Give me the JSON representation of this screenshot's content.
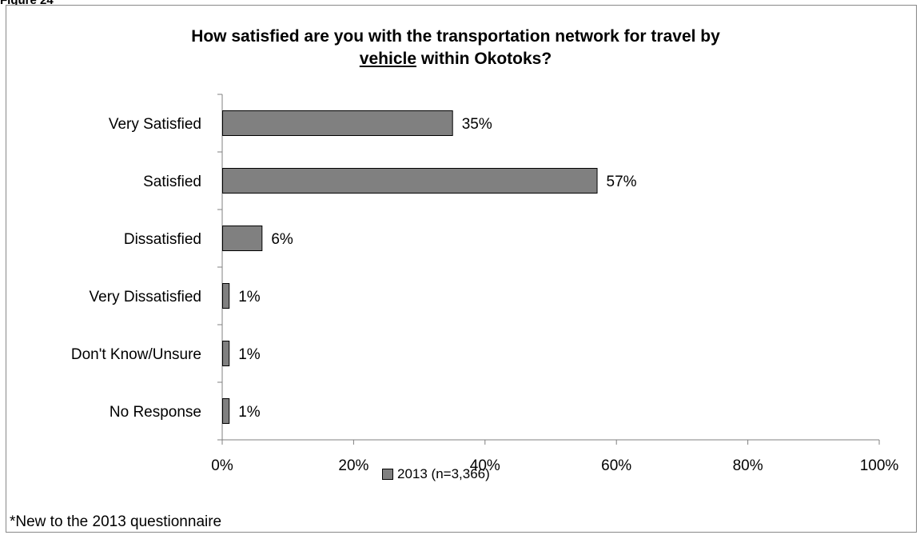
{
  "figure_label": "Figure 24",
  "footnote": "*New to the 2013 questionnaire",
  "chart_data": {
    "type": "bar",
    "orientation": "horizontal",
    "title_line1": "How satisfied are you with the transportation network for travel by",
    "title_line2_underlined": "vehicle",
    "title_line2_rest": " within Okotoks?",
    "categories": [
      "Very Satisfied",
      "Satisfied",
      "Dissatisfied",
      "Very Dissatisfied",
      "Don't Know/Unsure",
      "No Response"
    ],
    "series": [
      {
        "name": "2013 (n=3,366)",
        "values": [
          35,
          57,
          6,
          1,
          1,
          1
        ]
      }
    ],
    "value_labels": [
      "35%",
      "57%",
      "6%",
      "1%",
      "1%",
      "1%"
    ],
    "xlim": [
      0,
      100
    ],
    "x_ticks": [
      0,
      20,
      40,
      60,
      80,
      100
    ],
    "x_tick_labels": [
      "0%",
      "20%",
      "40%",
      "60%",
      "80%",
      "100%"
    ],
    "grid": false,
    "legend_position": "bottom",
    "colors": {
      "bar_fill": "#808080",
      "bar_stroke": "#000000",
      "axis": "#808080"
    }
  }
}
